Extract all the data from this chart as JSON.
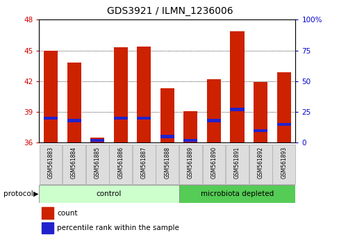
{
  "title": "GDS3921 / ILMN_1236006",
  "samples": [
    "GSM561883",
    "GSM561884",
    "GSM561885",
    "GSM561886",
    "GSM561887",
    "GSM561888",
    "GSM561889",
    "GSM561890",
    "GSM561891",
    "GSM561892",
    "GSM561893"
  ],
  "count_values": [
    45.0,
    43.8,
    36.5,
    45.3,
    45.4,
    41.3,
    39.1,
    42.2,
    46.9,
    41.9,
    42.9
  ],
  "percentile_values": [
    20,
    18,
    2,
    20,
    20,
    5,
    2,
    18,
    27,
    10,
    15
  ],
  "y_min": 36,
  "y_max": 48,
  "y_ticks_left": [
    36,
    39,
    42,
    45,
    48
  ],
  "y_ticks_right": [
    0,
    25,
    50,
    75,
    100
  ],
  "bar_color": "#CC2200",
  "dot_color": "#2222CC",
  "bg_color": "#FFFFFF",
  "plot_bg_color": "#FFFFFF",
  "control_samples": 6,
  "control_label": "control",
  "treatment_label": "microbiota depleted",
  "protocol_label": "protocol",
  "control_bg": "#CCFFCC",
  "treatment_bg": "#55CC55",
  "left_tick_color": "#CC0000",
  "right_tick_color": "#0000CC",
  "legend_count_label": "count",
  "legend_percentile_label": "percentile rank within the sample",
  "bar_width": 0.6
}
